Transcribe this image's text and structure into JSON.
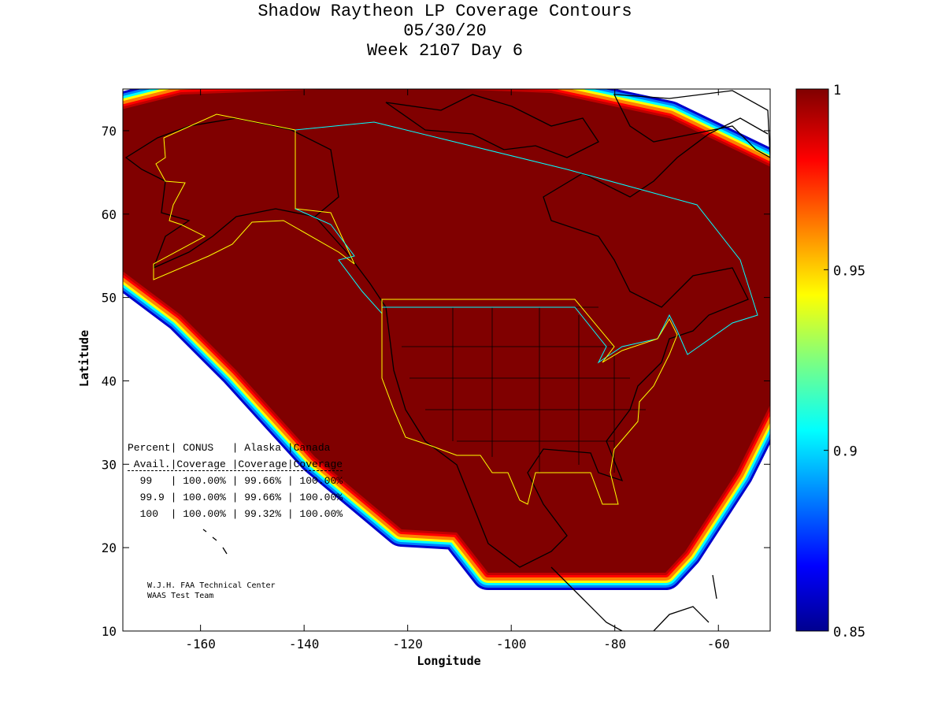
{
  "chart_data": {
    "type": "heatmap",
    "title": [
      "Shadow Raytheon LP Coverage Contours",
      "05/30/20",
      "Week 2107 Day 6"
    ],
    "xlabel": "Longitude",
    "ylabel": "Latitude",
    "xlim": [
      -175,
      -50
    ],
    "ylim": [
      10,
      75
    ],
    "xticks": [
      -160,
      -140,
      -120,
      -100,
      -80,
      -60
    ],
    "yticks": [
      10,
      20,
      30,
      40,
      50,
      60,
      70
    ],
    "colorbar": {
      "min": 0.85,
      "max": 1,
      "ticks": [
        0.85,
        0.9,
        0.95,
        1
      ],
      "colormap": "jet"
    },
    "table": {
      "header1": "Percent| CONUS   | Alaska |Canada",
      "header2": " Avail.|Coverage |Coverage|Coverage",
      "rows": [
        {
          "avail": "99",
          "conus": "100.00%",
          "alaska": "99.66%",
          "canada": "100.00%"
        },
        {
          "avail": "99.9",
          "conus": "100.00%",
          "alaska": "99.66%",
          "canada": "100.00%"
        },
        {
          "avail": "100",
          "conus": "100.00%",
          "alaska": "99.32%",
          "canada": "100.00%"
        }
      ]
    },
    "footer": [
      "W.J.H. FAA Technical Center",
      "WAAS Test Team"
    ]
  }
}
